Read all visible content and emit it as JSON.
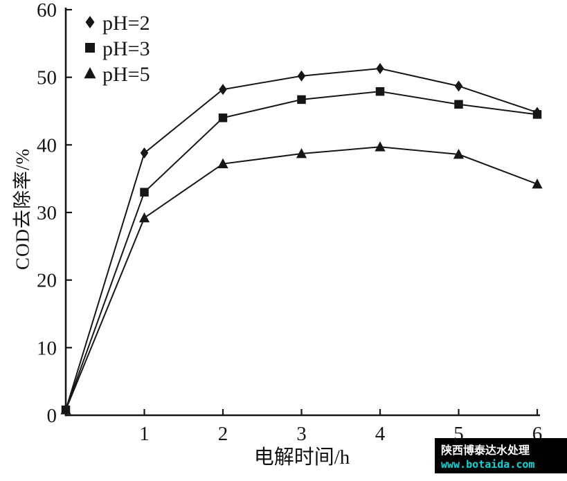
{
  "chart_data": {
    "type": "line",
    "title": "",
    "xlabel": "电解时间/h",
    "ylabel": "COD去除率/%",
    "xlim": [
      0,
      6
    ],
    "ylim": [
      0,
      60
    ],
    "xticks": [
      1,
      2,
      3,
      4,
      5,
      6
    ],
    "yticks": [
      0,
      10,
      20,
      30,
      40,
      50,
      60
    ],
    "grid": false,
    "legend_position": "top-left",
    "x": [
      0,
      1,
      2,
      3,
      4,
      5,
      6
    ],
    "series": [
      {
        "name": "pH=2",
        "marker": "diamond",
        "values": [
          0.8,
          38.8,
          48.2,
          50.2,
          51.3,
          48.7,
          44.8
        ]
      },
      {
        "name": "pH=3",
        "marker": "square",
        "values": [
          0.8,
          33.0,
          44.0,
          46.7,
          47.9,
          46.0,
          44.5
        ]
      },
      {
        "name": "pH=5",
        "marker": "triangle",
        "values": [
          0.8,
          29.2,
          37.2,
          38.7,
          39.7,
          38.6,
          34.2
        ]
      }
    ]
  },
  "colors": {
    "ink": "#161616",
    "background": "#ffffff",
    "watermark_bg": "#000000",
    "watermark_text": "#ffffff",
    "watermark_url": "#00d9d9"
  },
  "watermark": {
    "company": "陕西博泰达水处理",
    "url": "www.botaida.com"
  }
}
